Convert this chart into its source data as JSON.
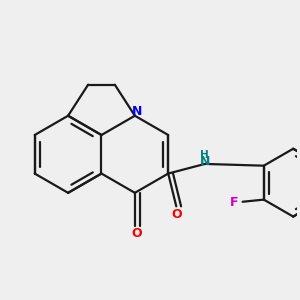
{
  "background_color": "#efefef",
  "bond_color": "#1a1a1a",
  "N_color": "#0000ff",
  "O_color": "#ff0000",
  "F_color": "#cc00cc",
  "NH_color": "#008080",
  "line_width": 1.6,
  "figsize": [
    3.0,
    3.0
  ],
  "dpi": 100,
  "xlim": [
    -2.5,
    3.0
  ],
  "ylim": [
    -2.2,
    2.0
  ]
}
